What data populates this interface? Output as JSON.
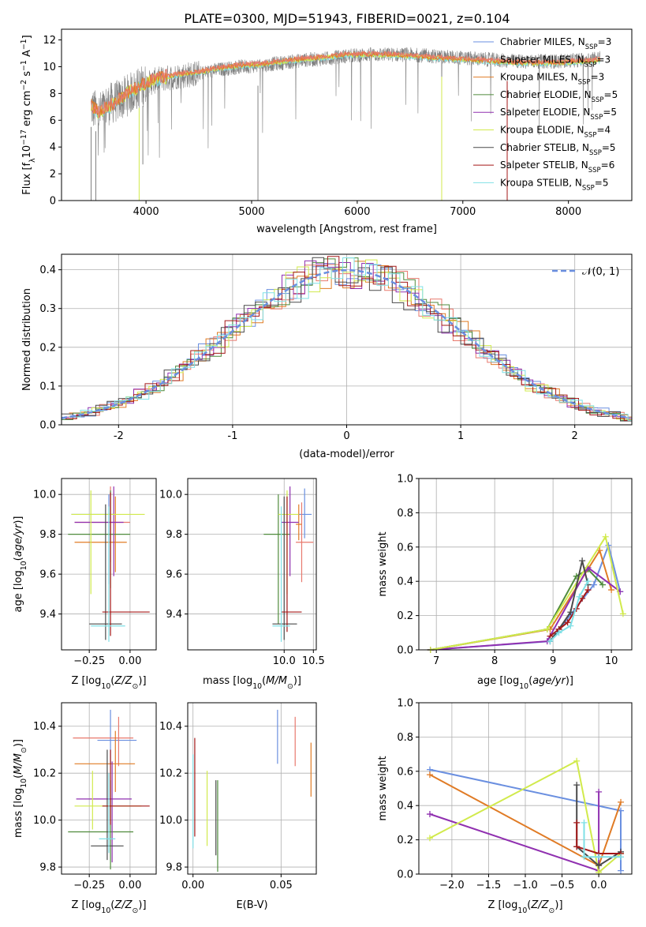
{
  "figure": {
    "title": "PLATE=0300, MJD=51943, FIBERID=0021, z=0.104"
  },
  "models": [
    {
      "name": "Chabrier MILES",
      "nssp": "3",
      "color": "#6a8fe0"
    },
    {
      "name": "Salpeter MILES",
      "nssp": "3",
      "color": "#e8796d"
    },
    {
      "name": "Kroupa MILES",
      "nssp": "3",
      "color": "#e07b25"
    },
    {
      "name": "Chabrier ELODIE",
      "nssp": "5",
      "color": "#4f8b3c"
    },
    {
      "name": "Salpeter ELODIE",
      "nssp": "5",
      "color": "#9030b0"
    },
    {
      "name": "Kroupa ELODIE",
      "nssp": "4",
      "color": "#d1ea4c"
    },
    {
      "name": "Chabrier STELIB",
      "nssp": "5",
      "color": "#4a4a4a"
    },
    {
      "name": "Salpeter STELIB",
      "nssp": "6",
      "color": "#a41818"
    },
    {
      "name": "Kroupa STELIB",
      "nssp": "5",
      "color": "#7fe0e6"
    }
  ],
  "chart_data": [
    {
      "id": "spectrum",
      "type": "line",
      "xlabel": "wavelength [Angstrom, rest frame]",
      "ylabel": "Flux [f_λ 10^-17 erg cm^-2 s^-1 A^-1]",
      "xlim": [
        3200,
        8600
      ],
      "ylim": [
        0,
        12.8
      ],
      "xticks": [
        4000,
        5000,
        6000,
        7000,
        8000
      ],
      "yticks": [
        0,
        2,
        4,
        6,
        8,
        10,
        12
      ],
      "observed": {
        "name": "data",
        "color": "#808080",
        "x": [
          3480,
          3550,
          3650,
          3750,
          3850,
          3950,
          4100,
          4300,
          4500,
          4700,
          4900,
          5100,
          5300,
          5500,
          5700,
          5900,
          6100,
          6300,
          6500,
          6700,
          6900,
          7100,
          7300,
          7500,
          7700,
          7900,
          8100,
          8300
        ],
        "y": [
          7.0,
          6.5,
          7.2,
          7.5,
          8.0,
          8.5,
          9.0,
          9.3,
          9.5,
          9.8,
          10.0,
          10.1,
          10.3,
          10.5,
          10.6,
          10.8,
          10.9,
          10.9,
          10.9,
          10.8,
          10.7,
          10.6,
          10.5,
          10.4,
          10.4,
          10.4,
          10.5,
          10.7
        ]
      },
      "model": {
        "name": "Kroupa STELIB",
        "color": "#7fe0e6",
        "x": [
          3480,
          3550,
          3650,
          3750,
          3850,
          3950,
          4100,
          4300,
          4500,
          4700,
          4900,
          5100,
          5300,
          5500,
          5700,
          5900,
          6100,
          6300,
          6500,
          6700,
          6900,
          7100,
          7300,
          7500,
          7700,
          7900,
          8100,
          8300
        ],
        "y": [
          7.1,
          6.6,
          7.0,
          7.6,
          8.2,
          8.6,
          9.1,
          9.4,
          9.6,
          9.9,
          10.1,
          10.2,
          10.4,
          10.6,
          10.7,
          10.9,
          10.9,
          10.9,
          10.8,
          10.7,
          10.6,
          10.5,
          10.4,
          10.3,
          10.3,
          10.3,
          10.4,
          10.5
        ]
      }
    },
    {
      "id": "residual_hist",
      "type": "line",
      "xlabel": "(data-model)/error",
      "ylabel": "Normed distribution",
      "xlim": [
        -2.5,
        2.5
      ],
      "ylim": [
        0,
        0.44
      ],
      "xticks": [
        -2,
        -1,
        0,
        1,
        2
      ],
      "yticks": [
        0.0,
        0.1,
        0.2,
        0.3,
        0.4
      ],
      "legend": "𝒩(0, 1)",
      "legend_position": "top-right",
      "reference_curve": {
        "name": "𝒩(0, 1)",
        "color": "#6a8fe0",
        "style": "dashed"
      }
    },
    {
      "id": "age_vs_Z",
      "type": "errorbar",
      "xlabel": "Z [log10(Z/Z⊙)]",
      "ylabel": "age [log10(age/yr)]",
      "xlim": [
        -0.42,
        0.16
      ],
      "ylim": [
        9.22,
        10.08
      ],
      "xticks": [
        -0.25,
        0.0
      ],
      "xticklabels": [
        "−0.25",
        "0.00"
      ],
      "yticks": [
        9.4,
        9.6,
        9.8,
        10.0
      ],
      "yticklabels": [
        "9.4",
        "9.6",
        "9.8",
        "10.0"
      ],
      "points": [
        {
          "x": -0.13,
          "y": 9.9,
          "xerr": [
            0.23,
            0.03
          ],
          "yerr": [
            0.35,
            0.1
          ],
          "color": "#6a8fe0"
        },
        {
          "x": -0.12,
          "y": 9.86,
          "xerr": [
            0.22,
            0.12
          ],
          "yerr": [
            0.2,
            0.18
          ],
          "color": "#e8796d"
        },
        {
          "x": -0.09,
          "y": 9.76,
          "xerr": [
            0.25,
            0.07
          ],
          "yerr": [
            0.15,
            0.23
          ],
          "color": "#e07b25"
        },
        {
          "x": -0.12,
          "y": 9.8,
          "xerr": [
            0.26,
            0.12
          ],
          "yerr": [
            0.27,
            0.22
          ],
          "color": "#4f8b3c"
        },
        {
          "x": -0.1,
          "y": 9.86,
          "xerr": [
            0.24,
            0.06
          ],
          "yerr": [
            0.27,
            0.18
          ],
          "color": "#9030b0"
        },
        {
          "x": -0.24,
          "y": 9.9,
          "xerr": [
            0.12,
            0.33
          ],
          "yerr": [
            0.4,
            0.12
          ],
          "color": "#d1ea4c"
        },
        {
          "x": -0.15,
          "y": 9.35,
          "xerr": [
            0.1,
            0.1
          ],
          "yerr": [
            0.08,
            0.6
          ],
          "color": "#4a4a4a"
        },
        {
          "x": -0.12,
          "y": 9.41,
          "xerr": [
            0.05,
            0.24
          ],
          "yerr": [
            0.12,
            0.6
          ],
          "color": "#a41818"
        },
        {
          "x": -0.13,
          "y": 9.34,
          "xerr": [
            0.11,
            0.1
          ],
          "yerr": [
            0.08,
            0.6
          ],
          "color": "#7fe0e6"
        }
      ]
    },
    {
      "id": "age_vs_mass",
      "type": "errorbar",
      "xlabel": "mass [log10(M/M⊙)]",
      "ylabel": "",
      "xlim": [
        8.35,
        10.55
      ],
      "ylim": [
        9.22,
        10.08
      ],
      "xticks": [
        10.0,
        10.5
      ],
      "xticklabels": [
        "10.0",
        "10.5"
      ],
      "yticks": [
        9.4,
        9.6,
        9.8,
        10.0
      ],
      "yticklabels": [
        "9.4",
        "9.6",
        "9.8",
        "10.0"
      ],
      "points": [
        {
          "x": 10.35,
          "y": 9.9,
          "xerr": [
            0.1,
            0.12
          ],
          "yerr": [
            0.12,
            0.13
          ],
          "color": "#6a8fe0"
        },
        {
          "x": 10.3,
          "y": 9.76,
          "xerr": [
            0.1,
            0.2
          ],
          "yerr": [
            0.2,
            0.2
          ],
          "color": "#e8796d"
        },
        {
          "x": 10.25,
          "y": 9.85,
          "xerr": [
            0.05,
            0.05
          ],
          "yerr": [
            0.08,
            0.1
          ],
          "color": "#e07b25"
        },
        {
          "x": 9.9,
          "y": 9.8,
          "xerr": [
            0.25,
            0.2
          ],
          "yerr": [
            0.45,
            0.2
          ],
          "color": "#4f8b3c"
        },
        {
          "x": 10.1,
          "y": 9.86,
          "xerr": [
            0.15,
            0.15
          ],
          "yerr": [
            0.27,
            0.18
          ],
          "color": "#9030b0"
        },
        {
          "x": 10.05,
          "y": 9.9,
          "xerr": [
            0.15,
            0.2
          ],
          "yerr": [
            0.4,
            0.12
          ],
          "color": "#d1ea4c"
        },
        {
          "x": 10.0,
          "y": 9.35,
          "xerr": [
            0.2,
            0.22
          ],
          "yerr": [
            0.08,
            0.64
          ],
          "color": "#4a4a4a"
        },
        {
          "x": 10.05,
          "y": 9.41,
          "xerr": [
            0.1,
            0.25
          ],
          "yerr": [
            0.1,
            0.58
          ],
          "color": "#a41818"
        },
        {
          "x": 9.95,
          "y": 9.34,
          "xerr": [
            0.15,
            0.15
          ],
          "yerr": [
            0.08,
            0.6
          ],
          "color": "#7fe0e6"
        }
      ]
    },
    {
      "id": "mass_weight_vs_age",
      "type": "line",
      "xlabel": "age [log10(age/yr)]",
      "ylabel": "mass weight",
      "xlim": [
        6.7,
        10.35
      ],
      "ylim": [
        0,
        1.0
      ],
      "xticks": [
        7,
        8,
        9,
        10
      ],
      "yticks": [
        0.0,
        0.2,
        0.4,
        0.6,
        0.8,
        1.0
      ],
      "series": [
        {
          "color": "#6a8fe0",
          "x": [
            6.9,
            8.95,
            9.7,
            9.95,
            10.15
          ],
          "y": [
            0.0,
            0.05,
            0.38,
            0.61,
            0.34
          ]
        },
        {
          "color": "#e07b25",
          "x": [
            6.9,
            8.95,
            9.8,
            10.0
          ],
          "y": [
            0.0,
            0.12,
            0.58,
            0.35
          ]
        },
        {
          "color": "#4f8b3c",
          "x": [
            6.9,
            8.9,
            9.4,
            9.6,
            9.85
          ],
          "y": [
            0.0,
            0.12,
            0.43,
            0.47,
            0.38
          ]
        },
        {
          "color": "#9030b0",
          "x": [
            6.9,
            8.9,
            9.6,
            10.15
          ],
          "y": [
            0.0,
            0.05,
            0.48,
            0.34
          ]
        },
        {
          "color": "#d1ea4c",
          "x": [
            6.9,
            8.9,
            9.9,
            10.2
          ],
          "y": [
            0.0,
            0.12,
            0.66,
            0.21
          ]
        },
        {
          "color": "#4a4a4a",
          "x": [
            8.95,
            9.1,
            9.3,
            9.5,
            9.6
          ],
          "y": [
            0.05,
            0.12,
            0.22,
            0.52,
            0.38
          ]
        },
        {
          "color": "#a41818",
          "x": [
            8.95,
            9.1,
            9.25,
            9.4,
            9.5,
            9.6
          ],
          "y": [
            0.08,
            0.12,
            0.16,
            0.24,
            0.3,
            0.35
          ]
        },
        {
          "color": "#7fe0e6",
          "x": [
            8.95,
            9.1,
            9.3,
            9.45,
            9.6
          ],
          "y": [
            0.05,
            0.1,
            0.14,
            0.31,
            0.4
          ]
        }
      ]
    },
    {
      "id": "mass_vs_Z",
      "type": "errorbar",
      "xlabel": "Z [log10(Z/Z⊙)]",
      "ylabel": "mass [log10(M/M⊙)]",
      "xlim": [
        -0.42,
        0.16
      ],
      "ylim": [
        9.77,
        10.5
      ],
      "xticks": [
        -0.25,
        0.0
      ],
      "xticklabels": [
        "−0.25",
        "0.00"
      ],
      "yticks": [
        9.8,
        10.0,
        10.2,
        10.4
      ],
      "yticklabels": [
        "9.8",
        "10.0",
        "10.2",
        "10.4"
      ],
      "points": [
        {
          "x": -0.12,
          "y": 10.34,
          "xerr": [
            0.08,
            0.16
          ],
          "yerr": [
            0.1,
            0.13
          ],
          "color": "#6a8fe0"
        },
        {
          "x": -0.07,
          "y": 10.35,
          "xerr": [
            0.28,
            0.09
          ],
          "yerr": [
            0.12,
            0.09
          ],
          "color": "#e8796d"
        },
        {
          "x": -0.09,
          "y": 10.24,
          "xerr": [
            0.25,
            0.12
          ],
          "yerr": [
            0.12,
            0.14
          ],
          "color": "#e07b25"
        },
        {
          "x": -0.12,
          "y": 9.95,
          "xerr": [
            0.26,
            0.14
          ],
          "yerr": [
            0.16,
            0.22
          ],
          "color": "#4f8b3c"
        },
        {
          "x": -0.11,
          "y": 10.09,
          "xerr": [
            0.22,
            0.12
          ],
          "yerr": [
            0.27,
            0.16
          ],
          "color": "#9030b0"
        },
        {
          "x": -0.23,
          "y": 10.06,
          "xerr": [
            0.11,
            0.3
          ],
          "yerr": [
            0.1,
            0.15
          ],
          "color": "#d1ea4c"
        },
        {
          "x": -0.14,
          "y": 9.89,
          "xerr": [
            0.1,
            0.1
          ],
          "yerr": [
            0.06,
            0.41
          ],
          "color": "#4a4a4a"
        },
        {
          "x": -0.12,
          "y": 10.06,
          "xerr": [
            0.05,
            0.24
          ],
          "yerr": [
            0.08,
            0.24
          ],
          "color": "#a41818"
        },
        {
          "x": -0.13,
          "y": 9.92,
          "xerr": [
            0.06,
            0.04
          ],
          "yerr": [
            0.06,
            0.28
          ],
          "color": "#7fe0e6"
        }
      ]
    },
    {
      "id": "mass_vs_EBV",
      "type": "errorbar",
      "xlabel": "E(B-V)",
      "ylabel": "",
      "xlim": [
        -0.003,
        0.07
      ],
      "ylim": [
        9.77,
        10.5
      ],
      "xticks": [
        0.0,
        0.05
      ],
      "xticklabels": [
        "0.00",
        "0.05"
      ],
      "yticks": [
        9.8,
        10.0,
        10.2,
        10.4
      ],
      "yticklabels": [
        "9.8",
        "10.0",
        "10.2",
        "10.4"
      ],
      "points": [
        {
          "x": 0.048,
          "y": 10.34,
          "xerr": [
            0,
            0
          ],
          "yerr": [
            0.1,
            0.13
          ],
          "color": "#6a8fe0"
        },
        {
          "x": 0.058,
          "y": 10.35,
          "xerr": [
            0,
            0
          ],
          "yerr": [
            0.12,
            0.09
          ],
          "color": "#e8796d"
        },
        {
          "x": 0.067,
          "y": 10.22,
          "xerr": [
            0,
            0
          ],
          "yerr": [
            0.12,
            0.11
          ],
          "color": "#e07b25"
        },
        {
          "x": 0.014,
          "y": 10.05,
          "xerr": [
            0,
            0
          ],
          "yerr": [
            0.27,
            0.12
          ],
          "color": "#4f8b3c"
        },
        {
          "x": 0.001,
          "y": 10.2,
          "xerr": [
            0,
            0
          ],
          "yerr": [
            0.27,
            0.15
          ],
          "color": "#a41818"
        },
        {
          "x": 0.008,
          "y": 10.06,
          "xerr": [
            0,
            0
          ],
          "yerr": [
            0.17,
            0.15
          ],
          "color": "#d1ea4c"
        },
        {
          "x": 0.013,
          "y": 10.05,
          "xerr": [
            0,
            0
          ],
          "yerr": [
            0.2,
            0.12
          ],
          "color": "#4a4a4a"
        },
        {
          "x": 0.0,
          "y": 10.03,
          "xerr": [
            0,
            0
          ],
          "yerr": [
            0.15,
            0.25
          ],
          "color": "#7fe0e6"
        }
      ]
    },
    {
      "id": "mass_weight_vs_Z",
      "type": "line",
      "xlabel": "Z [log10(Z/Z⊙)]",
      "ylabel": "mass weight",
      "xlim": [
        -2.45,
        0.45
      ],
      "ylim": [
        0,
        1.0
      ],
      "xticks": [
        -2.0,
        -1.5,
        -1.0,
        -0.5,
        0.0
      ],
      "xticklabels": [
        "−2.0",
        "−1.5",
        "−1.0",
        "−0.5",
        "0.0"
      ],
      "yticks": [
        0.0,
        0.2,
        0.4,
        0.6,
        0.8,
        1.0
      ],
      "series": [
        {
          "color": "#6a8fe0",
          "x": [
            -2.3,
            0.3,
            0.3
          ],
          "y": [
            0.61,
            0.37,
            0.02
          ]
        },
        {
          "color": "#e07b25",
          "x": [
            -2.3,
            0.0,
            0.3
          ],
          "y": [
            0.58,
            0.05,
            0.42
          ]
        },
        {
          "color": "#9030b0",
          "x": [
            -2.3,
            0.0,
            0.0
          ],
          "y": [
            0.35,
            0.02,
            0.48
          ]
        },
        {
          "color": "#d1ea4c",
          "x": [
            -2.3,
            -0.3,
            0.0,
            0.3
          ],
          "y": [
            0.21,
            0.66,
            0.01,
            0.12
          ]
        },
        {
          "color": "#4a4a4a",
          "x": [
            -0.3,
            -0.3,
            0.0,
            0.3
          ],
          "y": [
            0.52,
            0.16,
            0.05,
            0.13
          ]
        },
        {
          "color": "#a41818",
          "x": [
            -0.3,
            -0.3,
            0.0,
            0.3
          ],
          "y": [
            0.3,
            0.16,
            0.12,
            0.12
          ]
        },
        {
          "color": "#7fe0e6",
          "x": [
            -0.2,
            -0.2,
            0.0,
            0.3
          ],
          "y": [
            0.3,
            0.1,
            0.1,
            0.1
          ]
        }
      ]
    }
  ]
}
